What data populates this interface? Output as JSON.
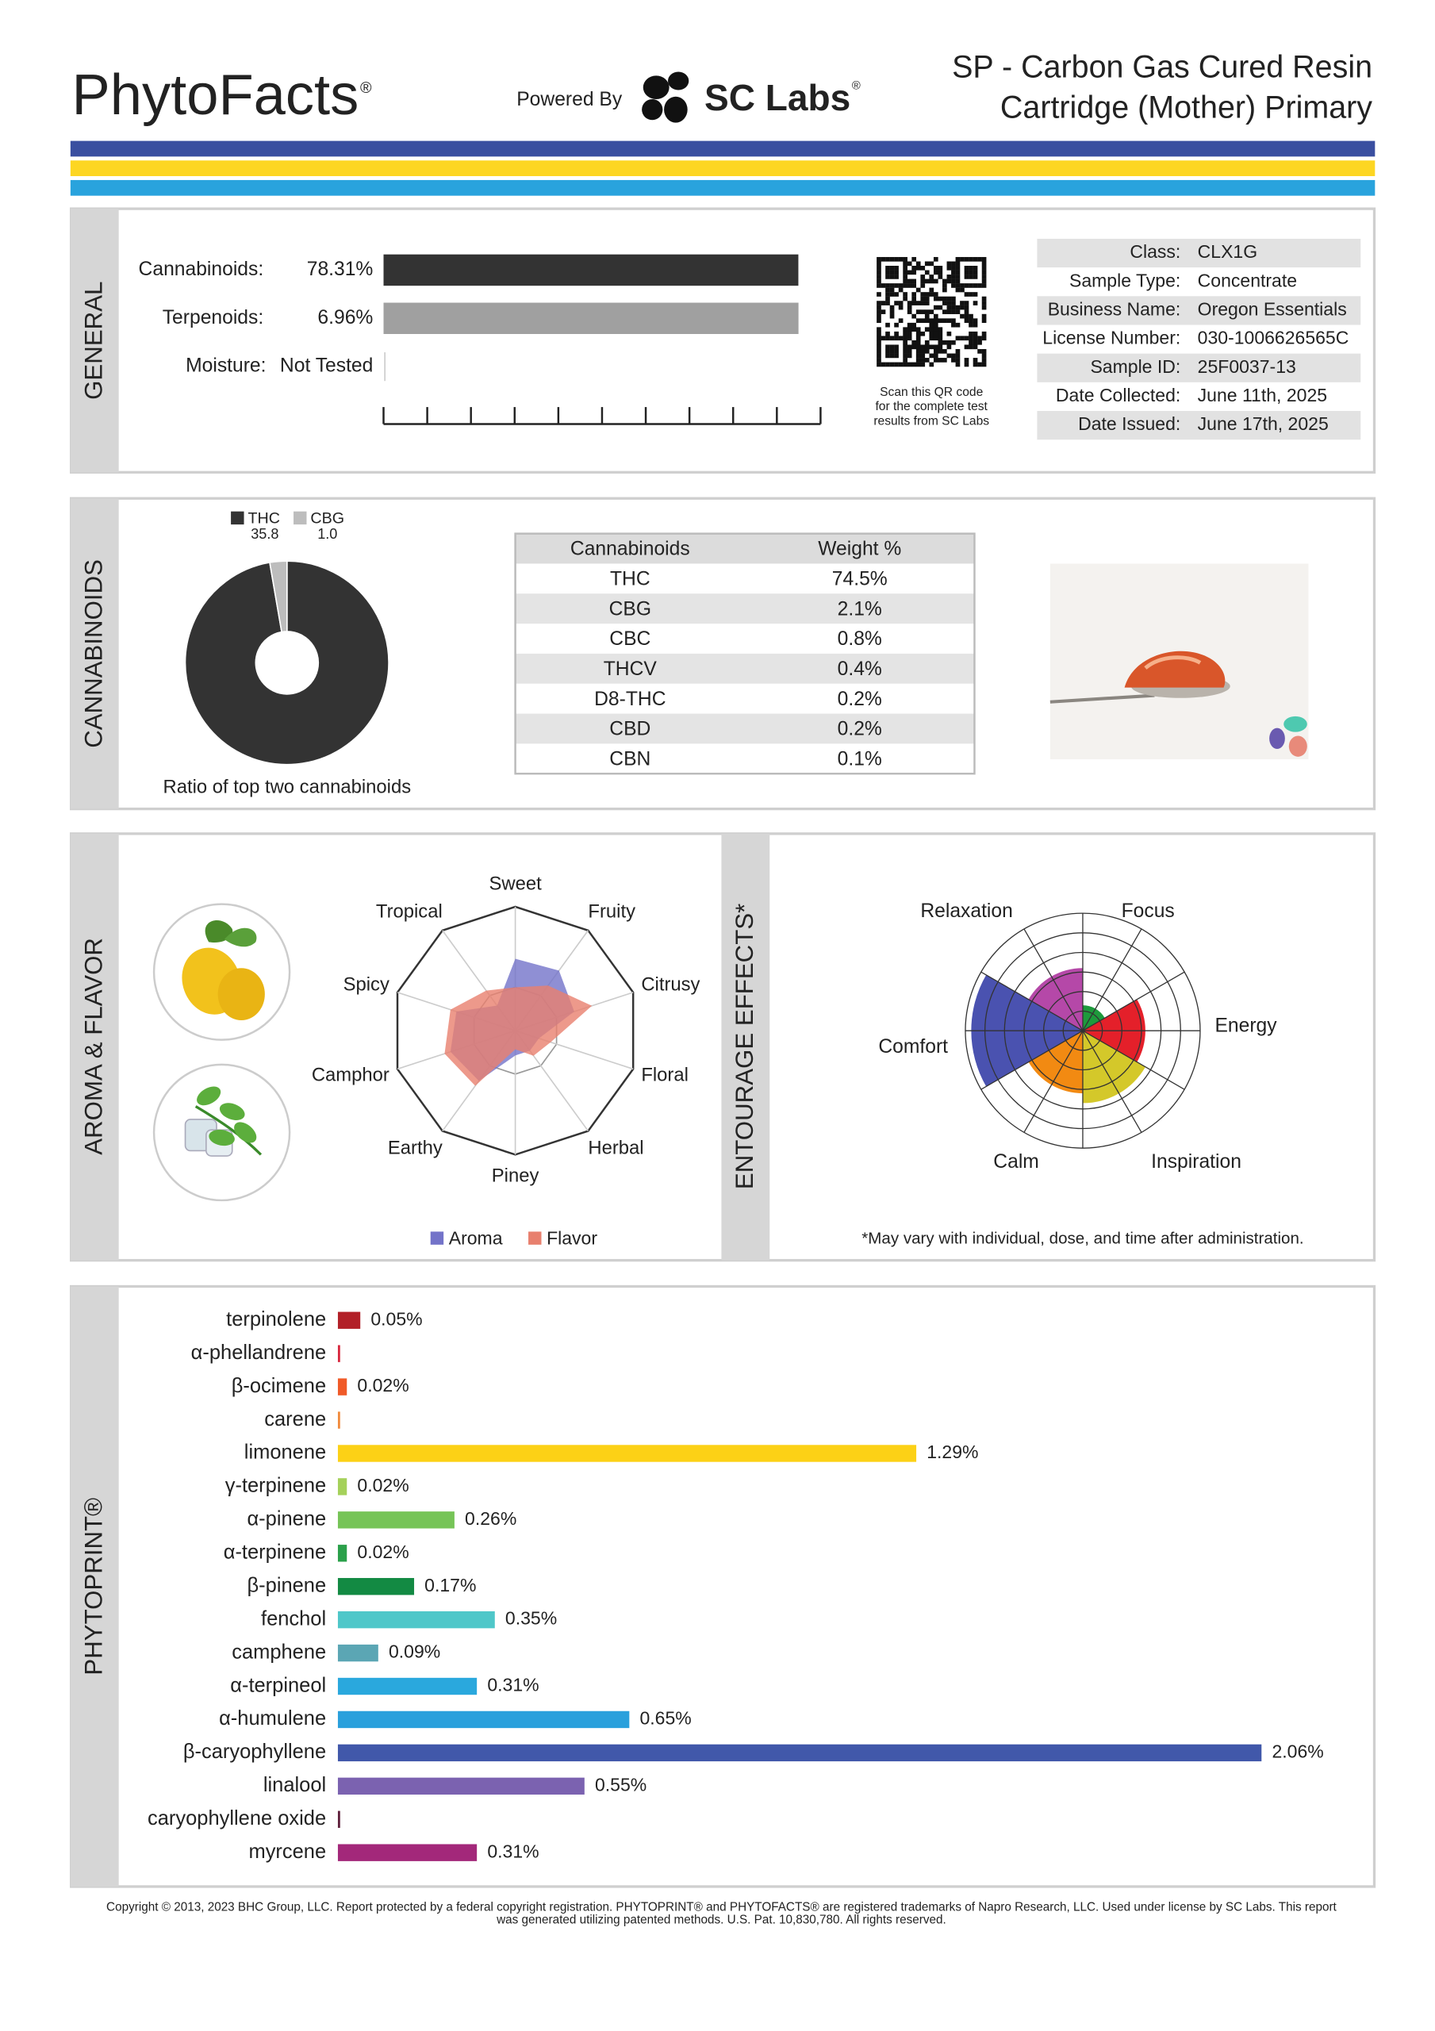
{
  "header": {
    "brand": "PhytoFacts",
    "brand_mark": "®",
    "powered_by": "Powered By",
    "lab": "SC Labs",
    "lab_mark": "®",
    "title_lines": [
      "SP - Carbon Gas Cured Resin",
      "Cartridge (Mother) Primary"
    ]
  },
  "general": {
    "section": "GENERAL",
    "bars": [
      {
        "label": "Cannabinoids:",
        "value": 78.31,
        "value_label": "78.31%",
        "xlim": [
          0,
          82.5
        ],
        "color": "#333333"
      },
      {
        "label": "Terpenoids:",
        "value": 6.96,
        "value_label": "6.96%",
        "xlim": [
          0,
          7.33
        ],
        "color": "#a0a0a0"
      }
    ],
    "moisture": {
      "label": "Moisture:",
      "value_label": "Not Tested"
    },
    "qr_caption": [
      "Scan this QR code",
      "for the complete test",
      "results from SC Labs"
    ],
    "info": [
      [
        "Class:",
        "CLX1G"
      ],
      [
        "Sample Type:",
        "Concentrate"
      ],
      [
        "Business Name:",
        "Oregon Essentials"
      ],
      [
        "License Number:",
        "030-1006626565C"
      ],
      [
        "Sample ID:",
        "25F0037-13"
      ],
      [
        "Date Collected:",
        "June 11th, 2025"
      ],
      [
        "Date Issued:",
        "June 17th, 2025"
      ]
    ]
  },
  "cannabinoids": {
    "section": "CANNABINOIDS",
    "ratio": {
      "type": "pie",
      "categories": [
        "THC",
        "CBG"
      ],
      "values": [
        35.8,
        1.0
      ],
      "value_labels": [
        "35.8",
        "1.0"
      ],
      "colors": [
        "#333333",
        "#bdbdbd"
      ],
      "caption": "Ratio of top two cannabinoids"
    },
    "table": {
      "headers": [
        "Cannabinoids",
        "Weight %"
      ],
      "rows": [
        [
          "THC",
          "74.5%"
        ],
        [
          "CBG",
          "2.1%"
        ],
        [
          "CBC",
          "0.8%"
        ],
        [
          "THCV",
          "0.4%"
        ],
        [
          "D8-THC",
          "0.2%"
        ],
        [
          "CBD",
          "0.2%"
        ],
        [
          "CBN",
          "0.1%"
        ]
      ]
    }
  },
  "aroma_flavor": {
    "section": "AROMA & FLAVOR",
    "type": "radar",
    "axes": [
      "Sweet",
      "Fruity",
      "Citrusy",
      "Floral",
      "Herbal",
      "Piney",
      "Earthy",
      "Camphor",
      "Spicy",
      "Tropical"
    ],
    "rlim": [
      0,
      1
    ],
    "series": [
      {
        "name": "Aroma",
        "color": "#7373c9",
        "values": [
          0.58,
          0.6,
          0.5,
          0.2,
          0.2,
          0.2,
          0.5,
          0.55,
          0.5,
          0.25
        ]
      },
      {
        "name": "Flavor",
        "color": "#e8806e",
        "values": [
          0.35,
          0.45,
          0.65,
          0.3,
          0.25,
          0.15,
          0.55,
          0.6,
          0.55,
          0.4
        ]
      }
    ]
  },
  "entourage": {
    "section": "ENTOURAGE EFFECTS*",
    "type": "polar",
    "categories": [
      "Focus",
      "Energy",
      "Inspiration",
      "Calm",
      "Comfort",
      "Relaxation"
    ],
    "values": [
      1.3,
      3.2,
      3.7,
      3.2,
      5.7,
      3.2
    ],
    "colors": [
      "#1e9a3c",
      "#e4202a",
      "#d4c82a",
      "#f28a12",
      "#4a52b0",
      "#b548a8"
    ],
    "label_colors": [
      "#1a8a3a",
      "#e02020",
      "#c8b400",
      "#f08010",
      "#3a46a8",
      "#b040a0"
    ],
    "rlim": [
      0,
      6
    ],
    "rticks": [
      1,
      2,
      3,
      4,
      5,
      6
    ],
    "footnote": "*May vary with individual, dose, and time after administration."
  },
  "phytoprint": {
    "section": "PHYTOPRINT®",
    "type": "bar",
    "categories": [
      "terpinolene",
      "α-phellandrene",
      "β-ocimene",
      "carene",
      "limonene",
      "γ-terpinene",
      "α-pinene",
      "α-terpinene",
      "β-pinene",
      "fenchol",
      "camphene",
      "α-terpineol",
      "α-humulene",
      "β-caryophyllene",
      "linalool",
      "caryophyllene oxide",
      "myrcene"
    ],
    "values": [
      0.05,
      0.005,
      0.02,
      0.005,
      1.29,
      0.02,
      0.26,
      0.02,
      0.17,
      0.35,
      0.09,
      0.31,
      0.65,
      2.06,
      0.55,
      0.005,
      0.31
    ],
    "value_labels": [
      "0.05%",
      null,
      "0.02%",
      null,
      "1.29%",
      "0.02%",
      "0.26%",
      "0.02%",
      "0.17%",
      "0.35%",
      "0.09%",
      "0.31%",
      "0.65%",
      "2.06%",
      "0.55%",
      null,
      "0.31%"
    ],
    "colors": [
      "#b22028",
      "#d7263d",
      "#f05a28",
      "#f08a3c",
      "#fcd116",
      "#a5d15a",
      "#76c457",
      "#2aa04a",
      "#138a43",
      "#4fc7c9",
      "#5ba6b4",
      "#2aa8dd",
      "#2aa0dc",
      "#4158aa",
      "#7b62b0",
      "#5e1f3b",
      "#a3287a"
    ],
    "label_colors": [
      "#b22028",
      "#d7263d",
      "#e04a1a",
      "#d07a30",
      "#8a7a10",
      "#6a9a2e",
      "#4aa23a",
      "#1f8a40",
      "#138a43",
      "#1f9a9c",
      "#3a8a98",
      "#1a88bd",
      "#1a80bc",
      "#3a4ea0",
      "#6a52a0",
      "#5e1f3b",
      "#a3287a"
    ],
    "xlim": [
      0,
      2.1
    ]
  },
  "footer": [
    "Copyright © 2013, 2023 BHC Group, LLC. Report protected by a federal copyright registration. PHYTOPRINT® and PHYTOFACTS® are registered trademarks of Napro Research, LLC. Used under license by SC Labs. This report",
    "was generated utilizing patented methods. U.S. Pat. 10,830,780. All rights reserved."
  ]
}
